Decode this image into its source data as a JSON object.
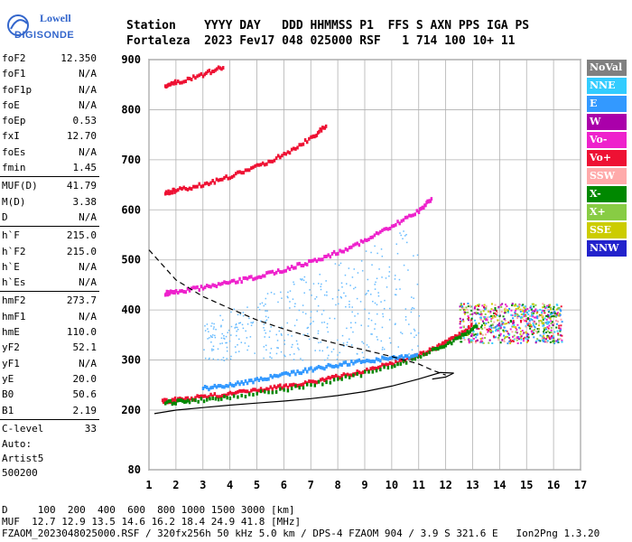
{
  "logo": {
    "line1": "Lowell",
    "line2": "DIGISONDE"
  },
  "header": {
    "line1": "Station    YYYY DAY   DDD HHMMSS P1  FFS S AXN PPS IGA PS",
    "line2": "Fortaleza  2023 Fev17 048 025000 RSF   1 714 100 10+ 11"
  },
  "params": {
    "group1": [
      {
        "k": "foF2",
        "v": "12.350"
      },
      {
        "k": "foF1",
        "v": "N/A"
      },
      {
        "k": "foF1p",
        "v": "N/A"
      },
      {
        "k": "foE",
        "v": "N/A"
      },
      {
        "k": "foEp",
        "v": "0.53"
      },
      {
        "k": "fxI",
        "v": "12.70"
      },
      {
        "k": "foEs",
        "v": "N/A"
      },
      {
        "k": "fmin",
        "v": "1.45"
      }
    ],
    "group2": [
      {
        "k": "MUF(D)",
        "v": "41.79"
      },
      {
        "k": "M(D)",
        "v": "3.38"
      },
      {
        "k": "D",
        "v": "N/A"
      }
    ],
    "group3": [
      {
        "k": "h`F",
        "v": "215.0"
      },
      {
        "k": "h`F2",
        "v": "215.0"
      },
      {
        "k": "h`E",
        "v": "N/A"
      },
      {
        "k": "h`Es",
        "v": "N/A"
      }
    ],
    "group4": [
      {
        "k": "hmF2",
        "v": "273.7"
      },
      {
        "k": "hmF1",
        "v": "N/A"
      },
      {
        "k": "hmE",
        "v": "110.0"
      },
      {
        "k": "yF2",
        "v": "52.1"
      },
      {
        "k": "yF1",
        "v": "N/A"
      },
      {
        "k": "yE",
        "v": "20.0"
      },
      {
        "k": "B0",
        "v": "50.6"
      },
      {
        "k": "B1",
        "v": "2.19"
      }
    ],
    "group5": [
      {
        "k": "C-level",
        "v": "33"
      }
    ]
  },
  "misc": {
    "l1": "Auto:",
    "l2": "Artist5",
    "l3": "500200"
  },
  "legend": [
    {
      "label": "NoVal",
      "color": "#808080"
    },
    {
      "label": "NNE",
      "color": "#33ccff"
    },
    {
      "label": "E",
      "color": "#3399ff"
    },
    {
      "label": "W",
      "color": "#aa00aa"
    },
    {
      "label": "Vo-",
      "color": "#ee22cc"
    },
    {
      "label": "Vo+",
      "color": "#ee1133"
    },
    {
      "label": "SSW",
      "color": "#ffaaaa"
    },
    {
      "label": "X-",
      "color": "#008800"
    },
    {
      "label": "X+",
      "color": "#88cc44"
    },
    {
      "label": "SSE",
      "color": "#cccc00"
    },
    {
      "label": "NNW",
      "color": "#2222cc"
    }
  ],
  "footer": {
    "line1": "D     100  200  400  600  800 1000 1500 3000 [km]",
    "line2": "MUF  12.7 12.9 13.5 14.6 16.2 18.4 24.9 41.8 [MHz]",
    "line3": "FZAOM_2023048025000.RSF / 320fx256h 50 kHz 5.0 km / DPS-4 FZAOM 904 / 3.9 S 321.6 E   Ion2Png 1.3.20"
  },
  "chart_data": {
    "type": "scatter",
    "xlim": [
      1,
      17
    ],
    "ylim": [
      80,
      900
    ],
    "xticks": [
      1,
      2,
      3,
      4,
      5,
      6,
      7,
      8,
      9,
      10,
      11,
      12,
      13,
      14,
      15,
      16,
      17
    ],
    "yticks": [
      80,
      200,
      300,
      400,
      500,
      600,
      700,
      800,
      900
    ],
    "grid": true,
    "traces": [
      {
        "name": "o-trace F",
        "color": "#ee1133",
        "points": [
          [
            1.5,
            220
          ],
          [
            2,
            222
          ],
          [
            3,
            228
          ],
          [
            4,
            234
          ],
          [
            5,
            241
          ],
          [
            6,
            249
          ],
          [
            7,
            258
          ],
          [
            8,
            268
          ],
          [
            9,
            280
          ],
          [
            10,
            295
          ],
          [
            11,
            312
          ],
          [
            11.8,
            330
          ],
          [
            12.3,
            345
          ],
          [
            13,
            370
          ]
        ]
      },
      {
        "name": "x-trace F",
        "color": "#008800",
        "points": [
          [
            1.6,
            216
          ],
          [
            2.5,
            220
          ],
          [
            4,
            228
          ],
          [
            6,
            242
          ],
          [
            8,
            262
          ],
          [
            10,
            288
          ],
          [
            11.5,
            320
          ],
          [
            12.5,
            345
          ],
          [
            13.2,
            372
          ]
        ]
      },
      {
        "name": "2F",
        "color": "#ee22cc",
        "points": [
          [
            1.6,
            435
          ],
          [
            2,
            438
          ],
          [
            3,
            446
          ],
          [
            4,
            456
          ],
          [
            5,
            468
          ],
          [
            6,
            482
          ],
          [
            7,
            498
          ],
          [
            8,
            517
          ],
          [
            9,
            540
          ],
          [
            10,
            568
          ],
          [
            11,
            600
          ],
          [
            11.5,
            625
          ]
        ]
      },
      {
        "name": "3F",
        "color": "#ee1133",
        "points": [
          [
            1.6,
            636
          ],
          [
            2,
            640
          ],
          [
            3,
            652
          ],
          [
            4,
            668
          ],
          [
            5,
            688
          ],
          [
            6,
            712
          ],
          [
            7,
            745
          ],
          [
            7.6,
            770
          ]
        ]
      },
      {
        "name": "4F",
        "color": "#ee1133",
        "points": [
          [
            1.6,
            850
          ],
          [
            2,
            856
          ],
          [
            3,
            872
          ],
          [
            3.8,
            888
          ]
        ]
      },
      {
        "name": "oblique E",
        "color": "#3399ff",
        "points": [
          [
            3,
            245
          ],
          [
            4,
            252
          ],
          [
            5,
            262
          ],
          [
            6,
            272
          ],
          [
            7,
            283
          ],
          [
            8,
            292
          ],
          [
            9,
            300
          ],
          [
            10,
            306
          ],
          [
            11,
            310
          ]
        ]
      }
    ],
    "profile": [
      [
        1.2,
        193
      ],
      [
        2,
        200
      ],
      [
        3,
        205
      ],
      [
        4,
        210
      ],
      [
        5,
        214
      ],
      [
        6,
        218
      ],
      [
        7,
        223
      ],
      [
        8,
        229
      ],
      [
        9,
        237
      ],
      [
        10,
        248
      ],
      [
        11,
        262
      ],
      [
        11.8,
        275
      ],
      [
        12.3,
        274
      ],
      [
        12,
        266
      ],
      [
        11.5,
        262
      ]
    ],
    "muf_curve": [
      [
        1,
        520
      ],
      [
        2,
        460
      ],
      [
        3,
        427
      ],
      [
        4,
        403
      ],
      [
        5,
        380
      ],
      [
        6,
        362
      ],
      [
        7,
        346
      ],
      [
        8,
        332
      ],
      [
        9,
        320
      ],
      [
        10,
        307
      ],
      [
        11,
        292
      ],
      [
        11.5,
        280
      ],
      [
        12,
        270
      ]
    ]
  }
}
